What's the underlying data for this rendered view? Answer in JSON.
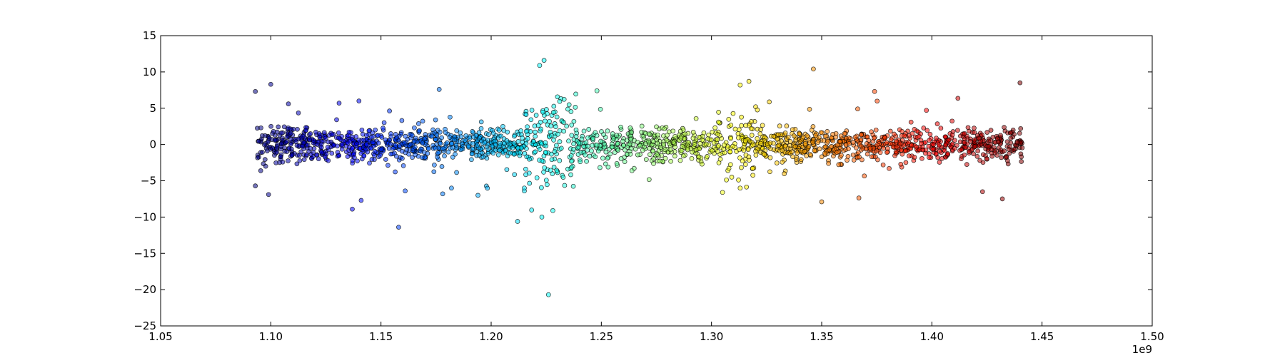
{
  "chart_data": {
    "type": "scatter",
    "title": "",
    "xlabel": "",
    "ylabel": "",
    "x_offset_label": "1e9",
    "xlim": [
      1.05,
      1.5
    ],
    "ylim": [
      -25,
      15
    ],
    "x_ticks": [
      1.05,
      1.1,
      1.15,
      1.2,
      1.25,
      1.3,
      1.35,
      1.4,
      1.45,
      1.5
    ],
    "x_tick_labels": [
      "1.05",
      "1.10",
      "1.15",
      "1.20",
      "1.25",
      "1.30",
      "1.35",
      "1.40",
      "1.45",
      "1.50"
    ],
    "y_ticks": [
      15,
      10,
      5,
      0,
      -5,
      -10,
      -15,
      -20,
      -25
    ],
    "y_tick_labels": [
      "15",
      "10",
      "5",
      "0",
      "−5",
      "−10",
      "−15",
      "−20",
      "−25"
    ],
    "grid": false,
    "legend": "none",
    "color_map": "jet (by x value)",
    "point_count": 2000,
    "dense_band": {
      "x_range": [
        1.093,
        1.441
      ],
      "y_range": [
        -3,
        3
      ]
    },
    "points": [
      {
        "x": 1.093,
        "y": 7.3
      },
      {
        "x": 1.093,
        "y": -5.7
      },
      {
        "x": 1.1,
        "y": 8.3
      },
      {
        "x": 1.099,
        "y": -6.9
      },
      {
        "x": 1.108,
        "y": 5.6
      },
      {
        "x": 1.131,
        "y": 5.7
      },
      {
        "x": 1.137,
        "y": -8.9
      },
      {
        "x": 1.14,
        "y": 6.0
      },
      {
        "x": 1.141,
        "y": -7.7
      },
      {
        "x": 1.158,
        "y": -11.4
      },
      {
        "x": 1.161,
        "y": -6.4
      },
      {
        "x": 1.178,
        "y": -6.8
      },
      {
        "x": 1.182,
        "y": -6.0
      },
      {
        "x": 1.194,
        "y": -7.0
      },
      {
        "x": 1.212,
        "y": -10.6
      },
      {
        "x": 1.222,
        "y": 10.9
      },
      {
        "x": 1.224,
        "y": 11.6
      },
      {
        "x": 1.223,
        "y": -10.0
      },
      {
        "x": 1.226,
        "y": -20.7
      },
      {
        "x": 1.228,
        "y": -9.1
      },
      {
        "x": 1.248,
        "y": 7.4
      },
      {
        "x": 1.305,
        "y": -6.6
      },
      {
        "x": 1.313,
        "y": 8.2
      },
      {
        "x": 1.317,
        "y": 8.7
      },
      {
        "x": 1.313,
        "y": -6.0
      },
      {
        "x": 1.35,
        "y": -7.9
      },
      {
        "x": 1.374,
        "y": 7.3
      },
      {
        "x": 1.423,
        "y": -6.5
      },
      {
        "x": 1.432,
        "y": -7.5
      },
      {
        "x": 1.44,
        "y": 8.5
      }
    ]
  }
}
